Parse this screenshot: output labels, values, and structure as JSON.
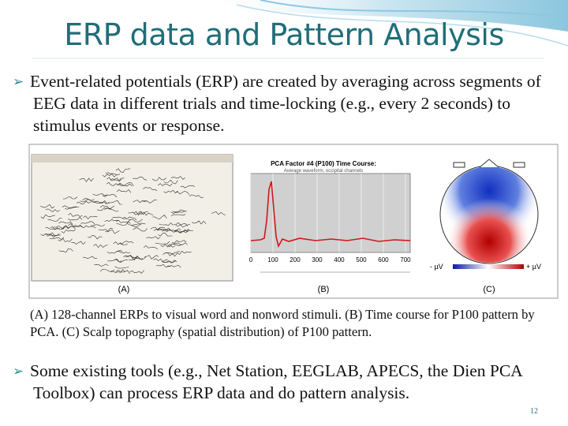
{
  "title": "ERP data and Pattern Analysis",
  "bullets": [
    "Event-related potentials (ERP) are created by averaging across segments of EEG data in different trials and time-locking (e.g., every 2 seconds) to stimulus events or response.",
    "Some existing tools (e.g., Net Station, EEGLAB, APECS, the Dien PCA Toolbox) can process ERP data and do pattern analysis."
  ],
  "figure": {
    "panel_labels": [
      "(A)",
      "(B)",
      "(C)"
    ],
    "plot_title": "PCA Factor #4 (P100) Time Course:",
    "plot_subtitle": "Average waveform, occipital channels",
    "x_tick_labels": [
      "0",
      "100",
      "200",
      "300",
      "400",
      "500",
      "600",
      "700"
    ],
    "scale_labels": [
      "- µV",
      "+ µV"
    ]
  },
  "caption": "(A) 128-channel ERPs to visual word and nonword stimuli. (B) Time course for P100 pattern by PCA. (C) Scalp topography (spatial distribution) of P100 pattern.",
  "page_number": "12"
}
